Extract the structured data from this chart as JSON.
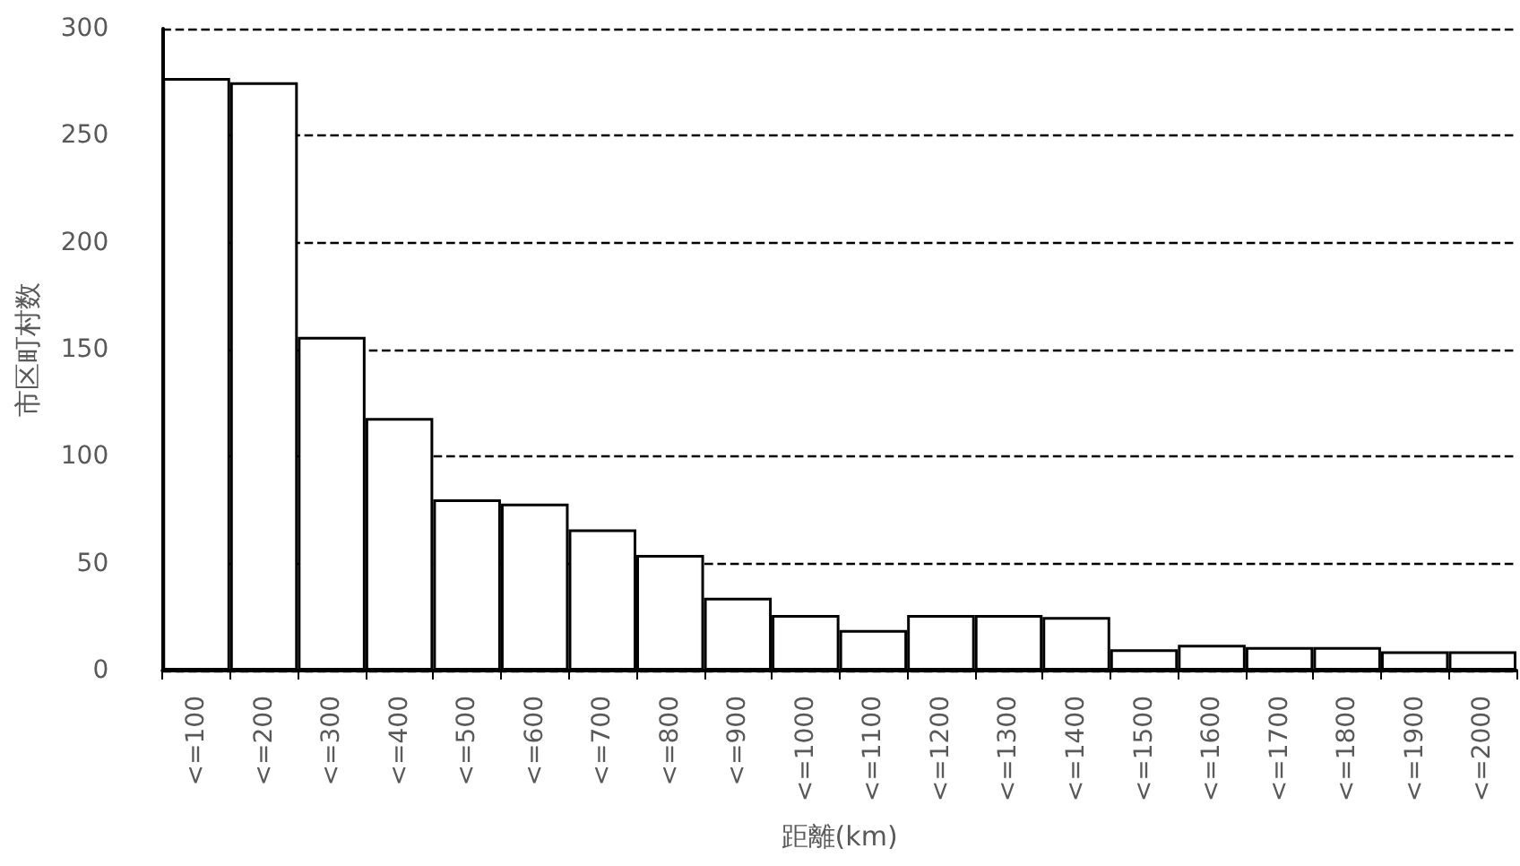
{
  "chart_data": {
    "type": "bar",
    "xlabel": "距離(km)",
    "ylabel": "市区町村数",
    "categories": [
      "<=100",
      "<=200",
      "<=300",
      "<=400",
      "<=500",
      "<=600",
      "<=700",
      "<=800",
      "<=900",
      "<=1000",
      "<=1100",
      "<=1200",
      "<=1300",
      "<=1400",
      "<=1500",
      "<=1600",
      "<=1700",
      "<=1800",
      "<=1900",
      "<=2000"
    ],
    "values": [
      277,
      275,
      156,
      118,
      80,
      78,
      66,
      54,
      34,
      26,
      19,
      26,
      26,
      25,
      10,
      12,
      11,
      11,
      9,
      9
    ],
    "color": "#ffffff",
    "ylim": [
      0,
      300
    ],
    "yticks": [
      0,
      50,
      100,
      150,
      200,
      250,
      300
    ],
    "grid": "y"
  }
}
